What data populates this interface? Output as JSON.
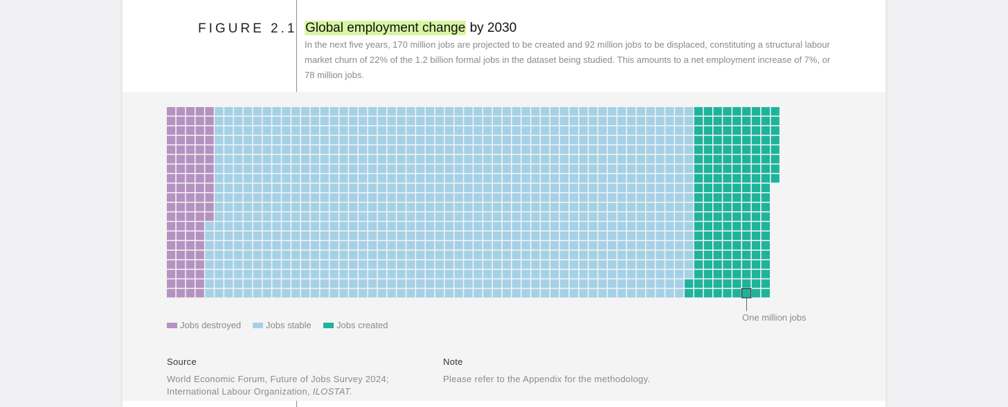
{
  "figure": {
    "label": "FIGURE 2.1",
    "title_highlight": "Global employment change",
    "title_rest": " by 2030",
    "description": "In the next five years, 170 million jobs are projected to be created and 92 million jobs to be displaced, constituting a structural labour market churn of 22% of the 1.2 billion formal jobs in the dataset being studied. This amounts to a net employment increase of 7%, or 78 million jobs."
  },
  "chart_data": {
    "type": "waffle",
    "unit": "One million jobs",
    "series": [
      {
        "name": "Jobs destroyed",
        "value": 92,
        "color": "#b592c2"
      },
      {
        "name": "Jobs stable",
        "value": 1006,
        "color": "#a5d1e6"
      },
      {
        "name": "Jobs created",
        "value": 170,
        "color": "#1fb39b"
      }
    ],
    "legend": [
      "Jobs destroyed",
      "Jobs stable",
      "Jobs created"
    ],
    "annotation": "One million jobs"
  },
  "source": {
    "heading": "Source",
    "line1": "World Economic Forum, Future of Jobs Survey 2024;",
    "line2": "International Labour Organization, ",
    "line2_italic": "ILOSTAT."
  },
  "note": {
    "heading": "Note",
    "text": "Please refer to the Appendix for the methodology."
  }
}
